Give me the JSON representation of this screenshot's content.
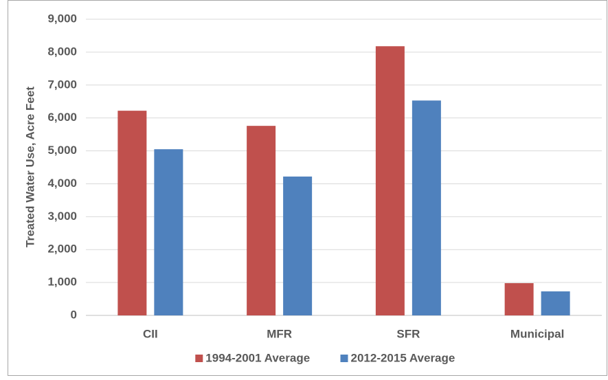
{
  "chart_data": {
    "type": "bar",
    "y_axis_label": "Treated Water Use, Acre Feet",
    "categories": [
      "CII",
      "MFR",
      "SFR",
      "Municipal"
    ],
    "series": [
      {
        "name": "1994-2001 Average",
        "color": "#c0504d",
        "values": [
          6220,
          5760,
          8180,
          980
        ]
      },
      {
        "name": "2012-2015 Average",
        "color": "#4f81bd",
        "values": [
          5050,
          4220,
          6530,
          730
        ]
      }
    ],
    "ylim": [
      0,
      9000
    ],
    "yticks": [
      0,
      {
        "value": 1000,
        "label": "1,000"
      },
      {
        "value": 2000,
        "label": "2,000"
      },
      {
        "value": 3000,
        "label": "3,000"
      },
      {
        "value": 4000,
        "label": "4,000"
      },
      {
        "value": 5000,
        "label": "5,000"
      },
      {
        "value": 6000,
        "label": "6,000"
      },
      {
        "value": 7000,
        "label": "7,000"
      },
      {
        "value": 8000,
        "label": "8,000"
      },
      {
        "value": 9000,
        "label": "9,000"
      }
    ],
    "grid": true,
    "legend": "bottom"
  }
}
